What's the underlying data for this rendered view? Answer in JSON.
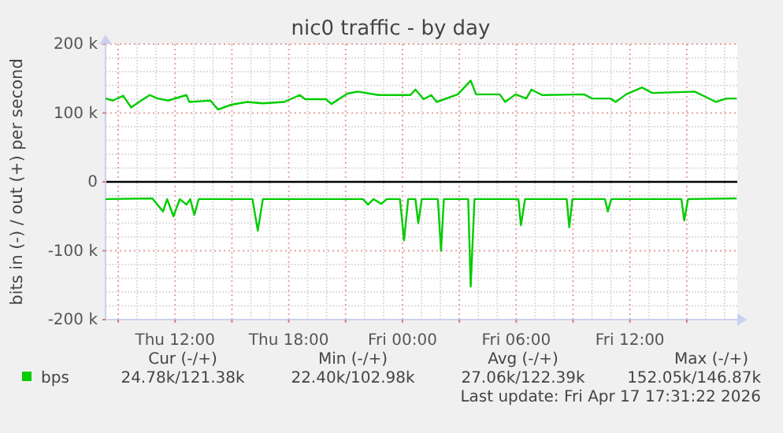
{
  "chart_data": {
    "type": "line",
    "title": "nic0 traffic - by day",
    "ylabel": "bits in (-) / out (+) per second",
    "xlim": [
      "2026-04-16T08:20",
      "2026-04-17T17:40"
    ],
    "xticks": [
      {
        "value": "2026-04-16T09:00",
        "label": null
      },
      {
        "value": "2026-04-16T12:00",
        "label": "Thu 12:00"
      },
      {
        "value": "2026-04-16T15:00",
        "label": null
      },
      {
        "value": "2026-04-16T18:00",
        "label": "Thu 18:00"
      },
      {
        "value": "2026-04-16T21:00",
        "label": null
      },
      {
        "value": "2026-04-17T00:00",
        "label": "Fri 00:00"
      },
      {
        "value": "2026-04-17T03:00",
        "label": null
      },
      {
        "value": "2026-04-17T06:00",
        "label": "Fri 06:00"
      },
      {
        "value": "2026-04-17T09:00",
        "label": null
      },
      {
        "value": "2026-04-17T12:00",
        "label": "Fri 12:00"
      },
      {
        "value": "2026-04-17T15:00",
        "label": null
      }
    ],
    "ylim": [
      -200000,
      200000
    ],
    "yticks": [
      {
        "value": -200000,
        "label": "-200 k"
      },
      {
        "value": -100000,
        "label": "-100 k"
      },
      0,
      {
        "value": 100000,
        "label": "100 k"
      },
      {
        "value": 200000,
        "label": "200 k"
      }
    ],
    "grid": true,
    "legend": "bottom",
    "marker": "none",
    "line_style": "solid",
    "ref_lines": [
      {
        "axis": "y",
        "value": 0,
        "color": "#000000"
      }
    ],
    "series": [
      {
        "name": "bps",
        "color": "#00cc00",
        "x": [
          "2026-04-16T08:20",
          "2026-04-16T08:43",
          "2026-04-16T09:16",
          "2026-04-16T09:41",
          "2026-04-16T10:06",
          "2026-04-16T10:40",
          "2026-04-16T11:05",
          "2026-04-16T11:38",
          "2026-04-16T12:36",
          "2026-04-16T12:45",
          "2026-04-16T13:52",
          "2026-04-16T14:16",
          "2026-04-16T14:58",
          "2026-04-16T15:48",
          "2026-04-16T16:38",
          "2026-04-16T17:45",
          "2026-04-16T18:35",
          "2026-04-16T18:52",
          "2026-04-16T19:58",
          "2026-04-16T20:15",
          "2026-04-16T21:05",
          "2026-04-16T21:38",
          "2026-04-16T22:45",
          "2026-04-17T00:25",
          "2026-04-17T00:41",
          "2026-04-17T01:07",
          "2026-04-17T01:31",
          "2026-04-17T01:48",
          "2026-04-17T02:55",
          "2026-04-17T03:36",
          "2026-04-17T03:53",
          "2026-04-17T05:08",
          "2026-04-17T05:25",
          "2026-04-17T05:58",
          "2026-04-17T06:32",
          "2026-04-17T06:48",
          "2026-04-17T07:22",
          "2026-04-17T09:35",
          "2026-04-17T10:00",
          "2026-04-17T10:58",
          "2026-04-17T11:15",
          "2026-04-17T11:48",
          "2026-04-17T12:38",
          "2026-04-17T13:11",
          "2026-04-17T15:25",
          "2026-04-17T16:15",
          "2026-04-17T16:32",
          "2026-04-17T17:05",
          "2026-04-17T17:38"
        ],
        "values": [
          121000,
          118000,
          125000,
          108000,
          116000,
          126000,
          121000,
          118000,
          126000,
          116000,
          118000,
          105000,
          112000,
          116000,
          114000,
          116000,
          126000,
          120000,
          120000,
          113000,
          128000,
          131000,
          126000,
          126000,
          134000,
          120000,
          126000,
          116000,
          127000,
          147000,
          127000,
          127000,
          116000,
          127000,
          121000,
          134000,
          126000,
          127000,
          121000,
          121000,
          116000,
          127000,
          137000,
          129000,
          131000,
          120000,
          116000,
          121000,
          121000
        ]
      },
      {
        "color": "#00cc00",
        "x": [
          "2026-04-16T08:20",
          "2026-04-16T10:48",
          "2026-04-16T11:22",
          "2026-04-16T11:35",
          "2026-04-16T11:55",
          "2026-04-16T12:15",
          "2026-04-16T12:36",
          "2026-04-16T12:48",
          "2026-04-16T13:01",
          "2026-04-16T13:15",
          "2026-04-16T16:05",
          "2026-04-16T16:22",
          "2026-04-16T16:38",
          "2026-04-16T21:55",
          "2026-04-16T22:11",
          "2026-04-16T22:28",
          "2026-04-16T22:53",
          "2026-04-16T23:10",
          "2026-04-16T23:52",
          "2026-04-17T00:05",
          "2026-04-17T00:18",
          "2026-04-17T00:41",
          "2026-04-17T00:50",
          "2026-04-17T01:01",
          "2026-04-17T01:52",
          "2026-04-17T02:02",
          "2026-04-17T02:11",
          "2026-04-17T03:28",
          "2026-04-17T03:36",
          "2026-04-17T03:48",
          "2026-04-17T06:07",
          "2026-04-17T06:15",
          "2026-04-17T06:28",
          "2026-04-17T08:40",
          "2026-04-17T08:48",
          "2026-04-17T08:58",
          "2026-04-17T10:41",
          "2026-04-17T10:50",
          "2026-04-17T11:01",
          "2026-04-17T14:43",
          "2026-04-17T14:52",
          "2026-04-17T15:04",
          "2026-04-17T17:38"
        ],
        "values": [
          -25000,
          -24000,
          -43000,
          -25000,
          -50000,
          -25000,
          -33000,
          -25000,
          -48000,
          -25000,
          -25000,
          -71000,
          -25000,
          -25000,
          -33000,
          -25000,
          -32000,
          -25000,
          -25000,
          -85000,
          -25000,
          -25000,
          -60000,
          -25000,
          -25000,
          -100000,
          -25000,
          -25000,
          -152000,
          -25000,
          -25000,
          -63000,
          -25000,
          -25000,
          -66000,
          -25000,
          -25000,
          -43000,
          -25000,
          -25000,
          -56000,
          -25000,
          -24000
        ]
      }
    ],
    "annotations": [
      "Cur (-/+)",
      "Min (-/+)",
      "Avg (-/+)",
      "Max (-/+)",
      "24.78k/121.38k",
      "22.40k/102.98k",
      "27.06k/122.39k",
      "152.05k/146.87k",
      "Last update: Fri Apr 17 17:31:22 2026"
    ]
  }
}
